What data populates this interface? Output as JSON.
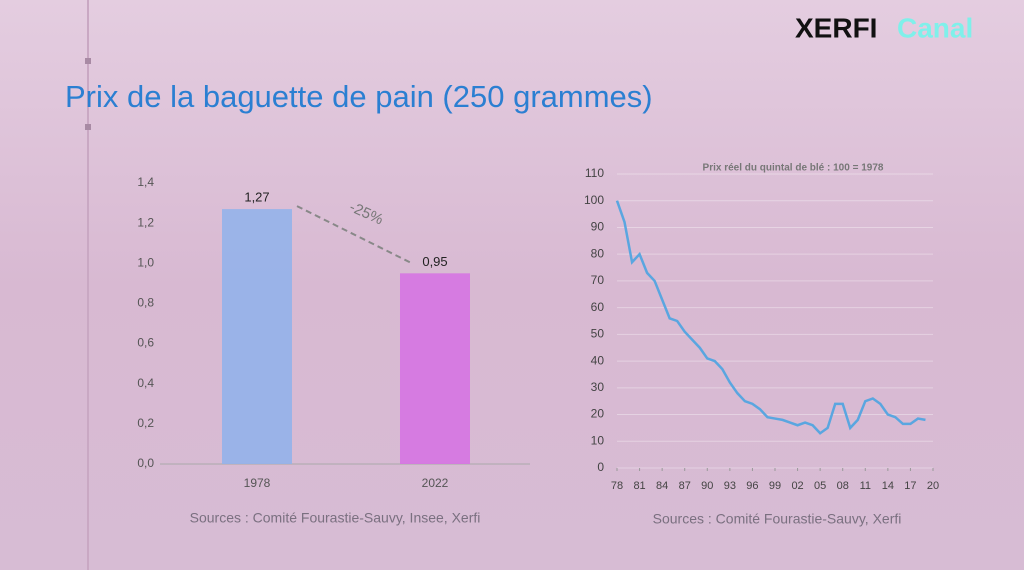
{
  "header": {
    "title": "Prix de la baguette de pain (250 grammes)",
    "logo": [
      "XERFI",
      "Canal"
    ]
  },
  "chart_data": [
    {
      "type": "bar",
      "categories": [
        "1978",
        "2022"
      ],
      "values": [
        1.27,
        0.95
      ],
      "value_labels": [
        "1,27",
        "0,95"
      ],
      "colors": [
        "#93b3ea",
        "#d674e2"
      ],
      "ylim": [
        0,
        1.4
      ],
      "yticks": [
        {
          "value": 0,
          "label": "0,0"
        },
        {
          "value": 0.2,
          "label": "0,2"
        },
        {
          "value": 0.4,
          "label": "0,4"
        },
        {
          "value": 0.6,
          "label": "0,6"
        },
        {
          "value": 0.8,
          "label": "0,8"
        },
        {
          "value": 1.0,
          "label": "1,0"
        },
        {
          "value": 1.2,
          "label": "1,2"
        },
        {
          "value": 1.4,
          "label": "1,4"
        }
      ],
      "annotation": "-25%",
      "source": "Sources : Comité Fourastie-Sauvy, Insee, Xerfi"
    },
    {
      "type": "line",
      "subtitle": "Prix réel du quintal de blé : 100 = 1978",
      "x": [
        1978,
        1979,
        1980,
        1981,
        1982,
        1983,
        1984,
        1985,
        1986,
        1987,
        1988,
        1989,
        1990,
        1991,
        1992,
        1993,
        1994,
        1995,
        1996,
        1997,
        1998,
        1999,
        2000,
        2001,
        2002,
        2003,
        2004,
        2005,
        2006,
        2007,
        2008,
        2009,
        2010,
        2011,
        2012,
        2013,
        2014,
        2015,
        2016,
        2017,
        2018,
        2019
      ],
      "series": [
        {
          "color": "#5aa6e0",
          "values": [
            100,
            92,
            77,
            80,
            73,
            70,
            63,
            56,
            55,
            51,
            48,
            45,
            41,
            40,
            37,
            32,
            28,
            25,
            24,
            22,
            19,
            18.5,
            18,
            17,
            16,
            17,
            16,
            13,
            15,
            24,
            24,
            15,
            18,
            25,
            26,
            24,
            20,
            19,
            16.5,
            16.5,
            18.5,
            18
          ]
        }
      ],
      "xlim": [
        1978,
        2020
      ],
      "ylim": [
        0,
        110
      ],
      "yticks": [
        0,
        10,
        20,
        30,
        40,
        50,
        60,
        70,
        80,
        90,
        100,
        110
      ],
      "grid": true,
      "xticks": [
        {
          "value": 1978,
          "label": "78"
        },
        {
          "value": 1981,
          "label": "81"
        },
        {
          "value": 1984,
          "label": "84"
        },
        {
          "value": 1987,
          "label": "87"
        },
        {
          "value": 1990,
          "label": "90"
        },
        {
          "value": 1993,
          "label": "93"
        },
        {
          "value": 1996,
          "label": "96"
        },
        {
          "value": 1999,
          "label": "99"
        },
        {
          "value": 2002,
          "label": "02"
        },
        {
          "value": 2005,
          "label": "05"
        },
        {
          "value": 2008,
          "label": "08"
        },
        {
          "value": 2011,
          "label": "11"
        },
        {
          "value": 2014,
          "label": "14"
        },
        {
          "value": 2017,
          "label": "17"
        },
        {
          "value": 2020,
          "label": "20"
        }
      ],
      "source": "Sources : Comité Fourastie-Sauvy, Xerfi"
    }
  ]
}
